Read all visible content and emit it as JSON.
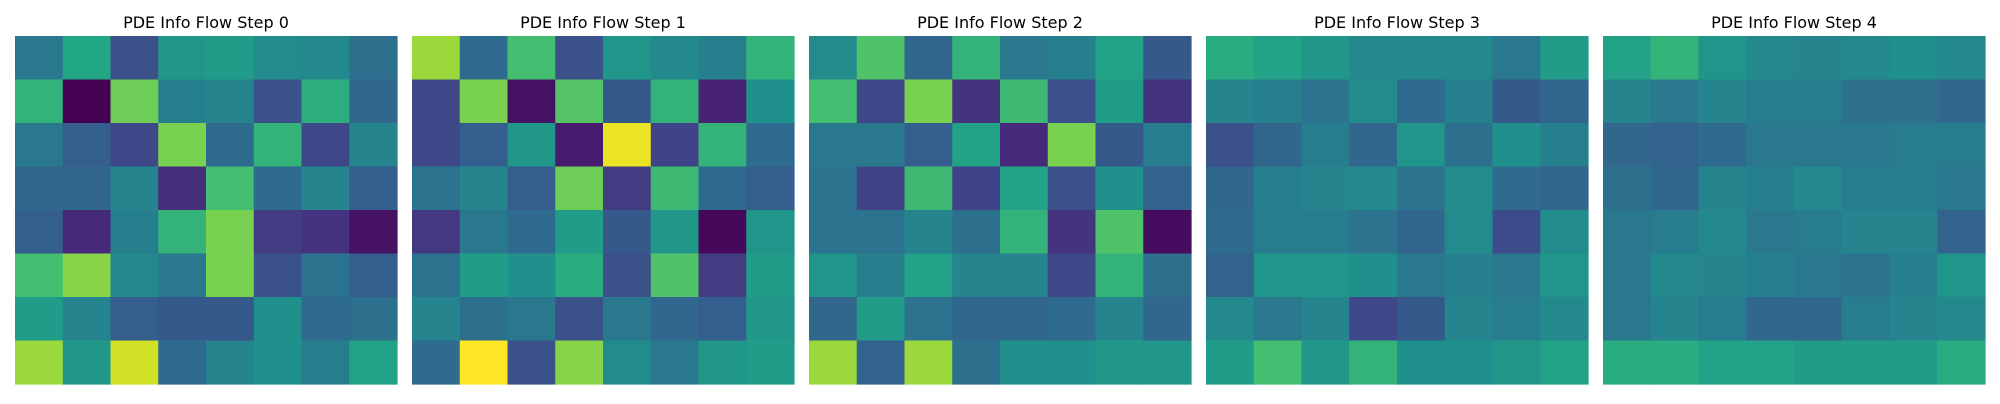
{
  "chart_data": [
    {
      "type": "heatmap",
      "title": "PDE Info Flow Step 0",
      "colormap": "viridis",
      "grid": false,
      "axes_visible": false,
      "values": [
        [
          0.4,
          0.6,
          0.25,
          0.53,
          0.55,
          0.48,
          0.47,
          0.37
        ],
        [
          0.65,
          0.0,
          0.78,
          0.43,
          0.45,
          0.25,
          0.63,
          0.33
        ],
        [
          0.4,
          0.3,
          0.22,
          0.8,
          0.35,
          0.65,
          0.22,
          0.45
        ],
        [
          0.33,
          0.33,
          0.45,
          0.13,
          0.7,
          0.35,
          0.45,
          0.3
        ],
        [
          0.3,
          0.12,
          0.43,
          0.65,
          0.8,
          0.18,
          0.15,
          0.05
        ],
        [
          0.7,
          0.82,
          0.47,
          0.4,
          0.8,
          0.25,
          0.38,
          0.3
        ],
        [
          0.55,
          0.45,
          0.3,
          0.28,
          0.28,
          0.5,
          0.35,
          0.37
        ],
        [
          0.85,
          0.53,
          0.93,
          0.35,
          0.45,
          0.5,
          0.42,
          0.58
        ]
      ]
    },
    {
      "type": "heatmap",
      "title": "PDE Info Flow Step 1",
      "colormap": "viridis",
      "grid": false,
      "axes_visible": false,
      "values": [
        [
          0.85,
          0.35,
          0.7,
          0.25,
          0.52,
          0.47,
          0.43,
          0.65
        ],
        [
          0.22,
          0.8,
          0.05,
          0.73,
          0.28,
          0.65,
          0.1,
          0.5
        ],
        [
          0.22,
          0.3,
          0.53,
          0.08,
          0.97,
          0.2,
          0.65,
          0.35
        ],
        [
          0.38,
          0.45,
          0.3,
          0.78,
          0.18,
          0.68,
          0.35,
          0.3
        ],
        [
          0.17,
          0.4,
          0.35,
          0.55,
          0.28,
          0.53,
          0.02,
          0.52
        ],
        [
          0.38,
          0.55,
          0.5,
          0.62,
          0.25,
          0.72,
          0.18,
          0.55
        ],
        [
          0.45,
          0.37,
          0.4,
          0.25,
          0.4,
          0.33,
          0.3,
          0.53
        ],
        [
          0.35,
          1.0,
          0.25,
          0.82,
          0.48,
          0.4,
          0.53,
          0.55
        ]
      ]
    },
    {
      "type": "heatmap",
      "title": "PDE Info Flow Step 2",
      "colormap": "viridis",
      "grid": false,
      "axes_visible": false,
      "values": [
        [
          0.48,
          0.72,
          0.33,
          0.65,
          0.4,
          0.43,
          0.58,
          0.28
        ],
        [
          0.7,
          0.22,
          0.8,
          0.15,
          0.68,
          0.25,
          0.55,
          0.15
        ],
        [
          0.4,
          0.4,
          0.3,
          0.58,
          0.12,
          0.8,
          0.28,
          0.42
        ],
        [
          0.38,
          0.2,
          0.68,
          0.2,
          0.58,
          0.25,
          0.5,
          0.32
        ],
        [
          0.38,
          0.38,
          0.45,
          0.37,
          0.65,
          0.15,
          0.72,
          0.03
        ],
        [
          0.52,
          0.43,
          0.58,
          0.45,
          0.45,
          0.22,
          0.65,
          0.37
        ],
        [
          0.33,
          0.55,
          0.38,
          0.33,
          0.33,
          0.35,
          0.45,
          0.33
        ],
        [
          0.85,
          0.32,
          0.85,
          0.37,
          0.5,
          0.5,
          0.53,
          0.53
        ]
      ]
    },
    {
      "type": "heatmap",
      "title": "PDE Info Flow Step 3",
      "colormap": "viridis",
      "grid": false,
      "axes_visible": false,
      "values": [
        [
          0.62,
          0.58,
          0.53,
          0.47,
          0.47,
          0.47,
          0.4,
          0.55
        ],
        [
          0.45,
          0.43,
          0.38,
          0.48,
          0.35,
          0.43,
          0.28,
          0.33
        ],
        [
          0.25,
          0.33,
          0.42,
          0.33,
          0.52,
          0.37,
          0.5,
          0.43
        ],
        [
          0.33,
          0.43,
          0.45,
          0.47,
          0.38,
          0.48,
          0.35,
          0.33
        ],
        [
          0.35,
          0.42,
          0.42,
          0.38,
          0.33,
          0.48,
          0.23,
          0.48
        ],
        [
          0.32,
          0.52,
          0.52,
          0.5,
          0.4,
          0.43,
          0.4,
          0.52
        ],
        [
          0.47,
          0.4,
          0.45,
          0.22,
          0.28,
          0.45,
          0.42,
          0.47
        ],
        [
          0.55,
          0.7,
          0.53,
          0.65,
          0.5,
          0.5,
          0.53,
          0.58
        ]
      ]
    },
    {
      "type": "heatmap",
      "title": "PDE Info Flow Step 4",
      "colormap": "viridis",
      "grid": false,
      "axes_visible": false,
      "values": [
        [
          0.58,
          0.65,
          0.52,
          0.47,
          0.45,
          0.47,
          0.5,
          0.47
        ],
        [
          0.45,
          0.4,
          0.45,
          0.42,
          0.42,
          0.37,
          0.37,
          0.33
        ],
        [
          0.33,
          0.32,
          0.35,
          0.4,
          0.4,
          0.4,
          0.42,
          0.42
        ],
        [
          0.37,
          0.33,
          0.45,
          0.43,
          0.47,
          0.42,
          0.42,
          0.4
        ],
        [
          0.4,
          0.42,
          0.47,
          0.4,
          0.42,
          0.45,
          0.45,
          0.32
        ],
        [
          0.4,
          0.47,
          0.45,
          0.43,
          0.4,
          0.38,
          0.43,
          0.52
        ],
        [
          0.4,
          0.45,
          0.42,
          0.33,
          0.33,
          0.42,
          0.45,
          0.47
        ],
        [
          0.62,
          0.62,
          0.58,
          0.58,
          0.55,
          0.55,
          0.55,
          0.62
        ]
      ]
    }
  ]
}
